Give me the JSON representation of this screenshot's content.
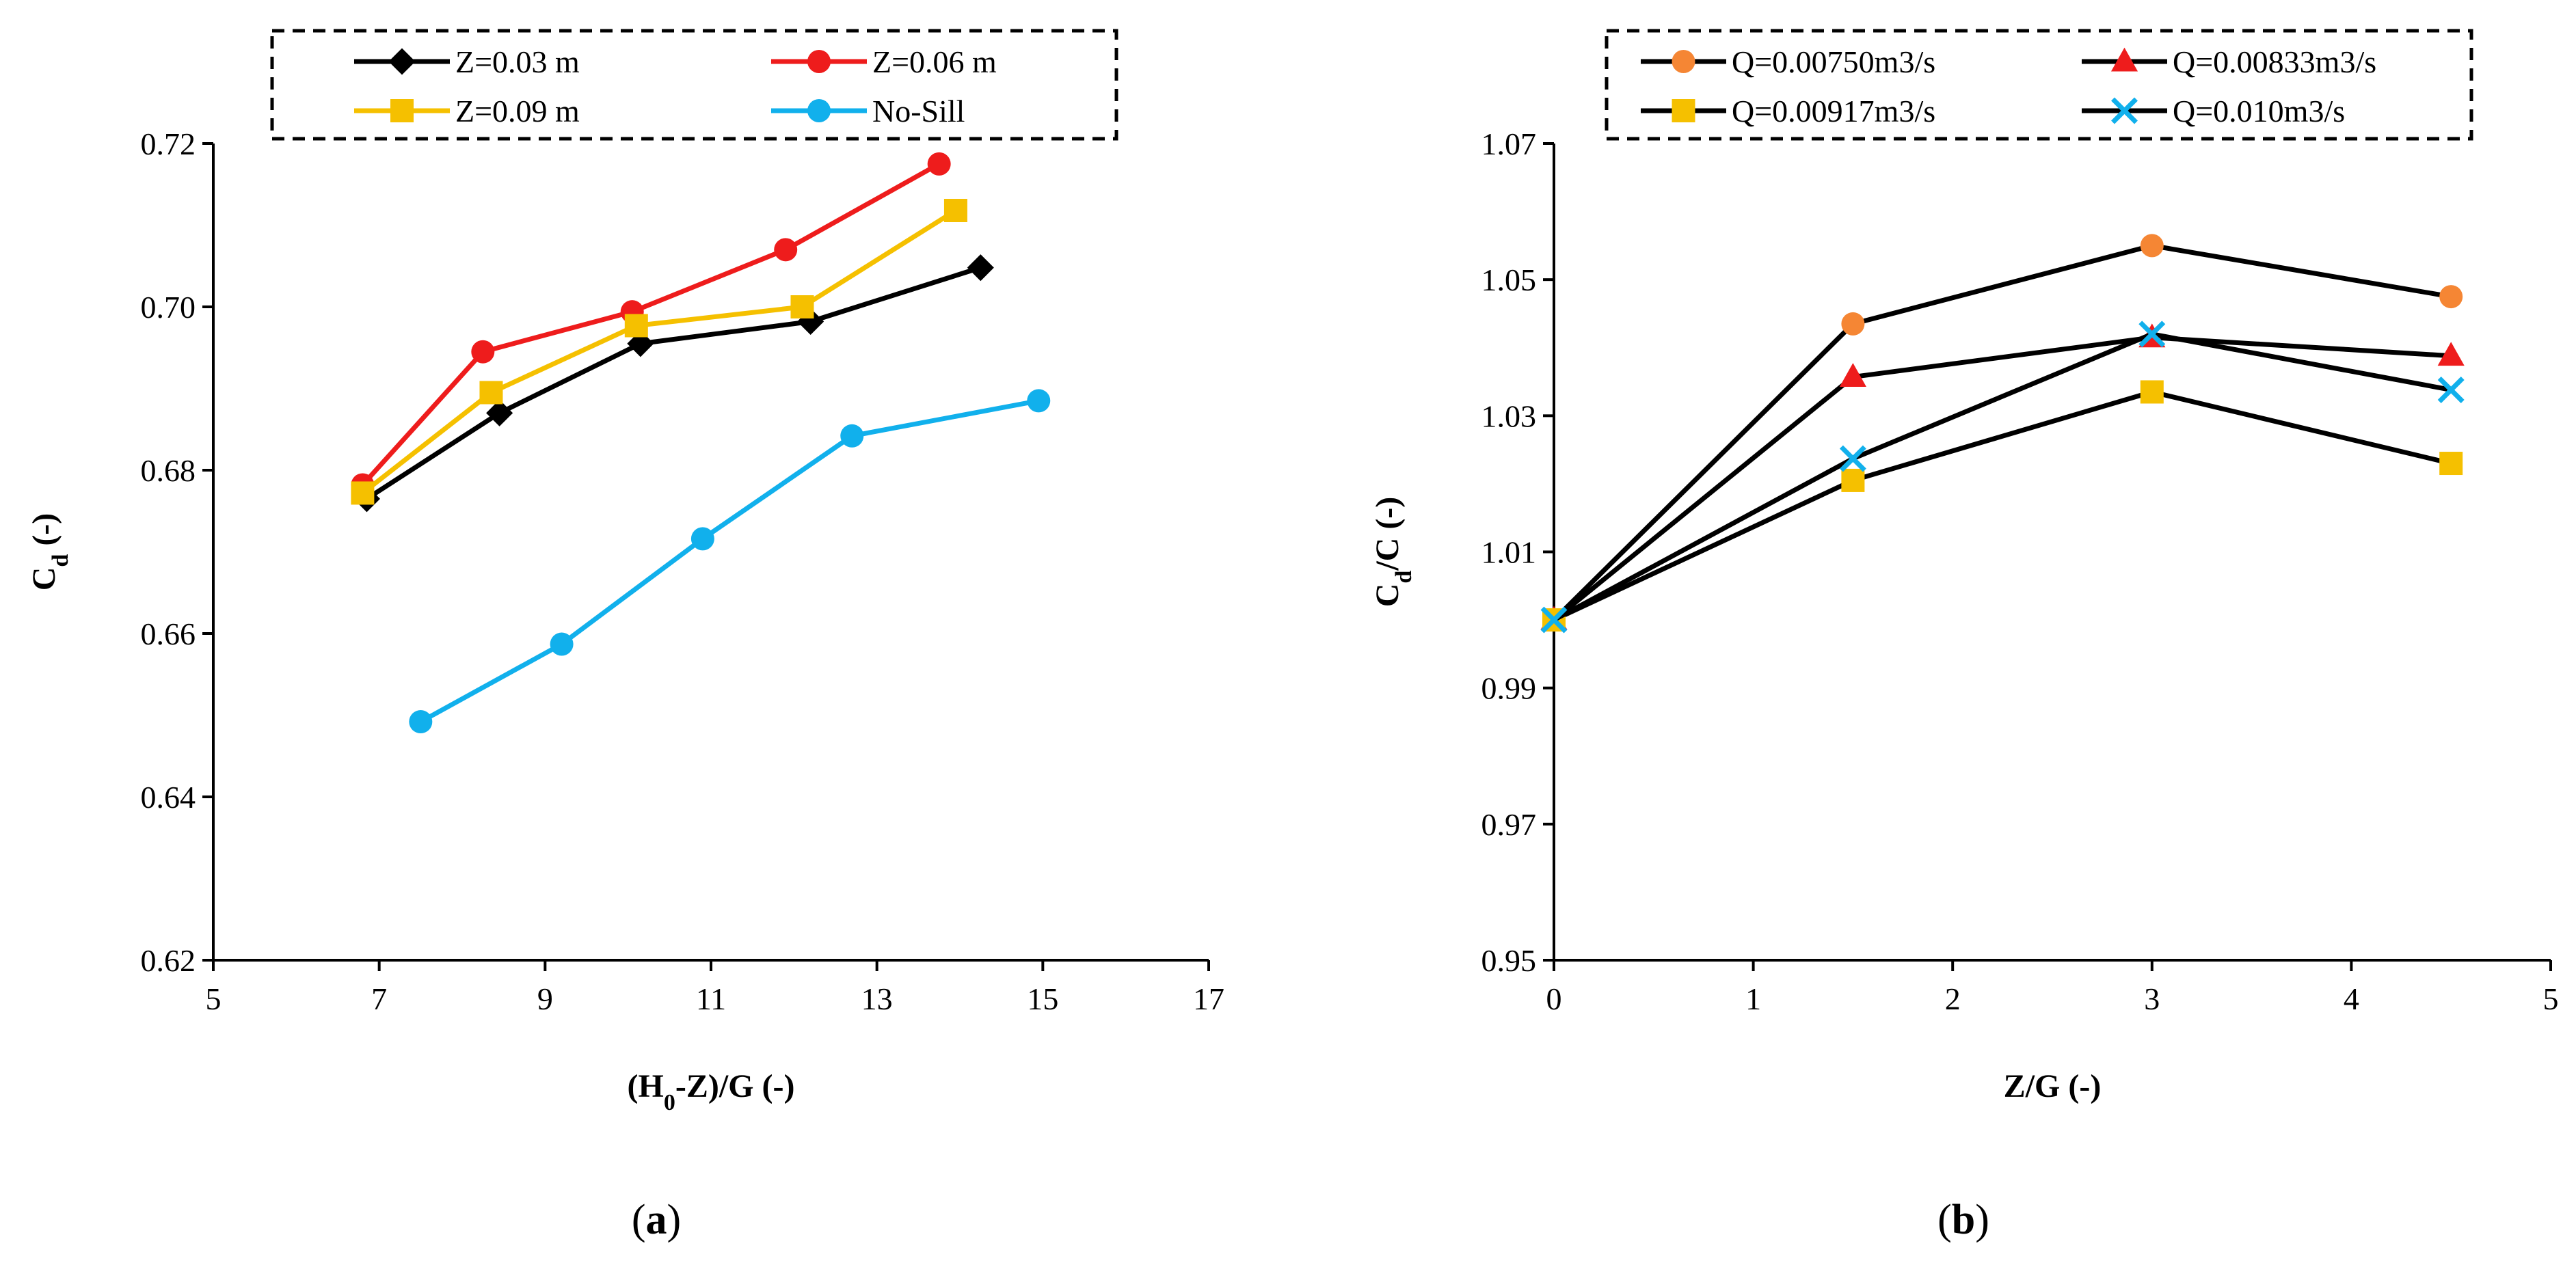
{
  "chart_data": [
    {
      "type": "line",
      "panel_label": "a",
      "xlabel": "(H0-Z)/G (-)",
      "xlabel_parts": [
        "(H",
        "0",
        "-Z)/G (-)"
      ],
      "ylabel": "Cd (-)",
      "ylabel_parts": [
        "C",
        "d",
        " (-)"
      ],
      "xlim": [
        5,
        17
      ],
      "ylim": [
        0.62,
        0.72
      ],
      "xticks": [
        "5",
        "7",
        "9",
        "11",
        "13",
        "15",
        "17"
      ],
      "yticks": [
        "0.62",
        "0.64",
        "0.66",
        "0.68",
        "0.70",
        "0.72"
      ],
      "grid": false,
      "legend_position": "top",
      "series": [
        {
          "name": "Z=0.03 m",
          "color": "#000000",
          "marker": "diamond",
          "x": [
            6.85,
            8.45,
            10.15,
            12.2,
            14.25
          ],
          "y": [
            0.6765,
            0.687,
            0.6955,
            0.6982,
            0.7048
          ]
        },
        {
          "name": "Z=0.06 m",
          "color": "#ee1c1c",
          "marker": "circle",
          "x": [
            6.8,
            8.25,
            10.05,
            11.9,
            13.75
          ],
          "y": [
            0.6782,
            0.6945,
            0.6994,
            0.707,
            0.7175
          ]
        },
        {
          "name": "Z=0.09 m",
          "color": "#f5c000",
          "marker": "square",
          "x": [
            6.8,
            8.35,
            10.1,
            12.1,
            13.95
          ],
          "y": [
            0.6772,
            0.6895,
            0.6977,
            0.7,
            0.7118
          ]
        },
        {
          "name": "No-Sill",
          "color": "#11b0ec",
          "marker": "circle",
          "x": [
            7.5,
            9.2,
            10.9,
            12.7,
            14.95
          ],
          "y": [
            0.6492,
            0.6587,
            0.6716,
            0.6842,
            0.6885
          ]
        }
      ]
    },
    {
      "type": "line",
      "panel_label": "b",
      "xlabel": "Z/G (-)",
      "xlabel_parts": [
        "Z/G (-)",
        "",
        ""
      ],
      "ylabel": "Cd/C (-)",
      "ylabel_parts": [
        "C",
        "d",
        "/C (-)"
      ],
      "xlim": [
        0,
        5
      ],
      "ylim": [
        0.95,
        1.07
      ],
      "xticks": [
        "0",
        "1",
        "2",
        "3",
        "4",
        "5"
      ],
      "yticks": [
        "0.95",
        "0.97",
        "0.99",
        "1.01",
        "1.03",
        "1.05",
        "1.07"
      ],
      "grid": false,
      "legend_position": "top",
      "series": [
        {
          "name": "Q=0.00750m3/s",
          "color": "#000000",
          "marker_color": "#f58634",
          "marker": "circle",
          "x": [
            0,
            1.5,
            3,
            4.5
          ],
          "y": [
            1.0,
            1.0435,
            1.055,
            1.0475
          ]
        },
        {
          "name": "Q=0.00833m3/s",
          "color": "#000000",
          "marker_color": "#ee1c1c",
          "marker": "triangle",
          "x": [
            0,
            1.5,
            3,
            4.5
          ],
          "y": [
            1.0,
            1.0357,
            1.0415,
            1.0388
          ]
        },
        {
          "name": "Q=0.00917m3/s",
          "color": "#000000",
          "marker_color": "#f5c000",
          "marker": "square",
          "x": [
            0,
            1.5,
            3,
            4.5
          ],
          "y": [
            1.0,
            1.0205,
            1.0335,
            1.023
          ]
        },
        {
          "name": "Q=0.010m3/s",
          "color": "#000000",
          "marker_color": "#11b0ec",
          "marker": "cross",
          "x": [
            0,
            1.5,
            3,
            4.5
          ],
          "y": [
            1.0,
            1.0237,
            1.042,
            1.0338
          ]
        }
      ]
    }
  ]
}
